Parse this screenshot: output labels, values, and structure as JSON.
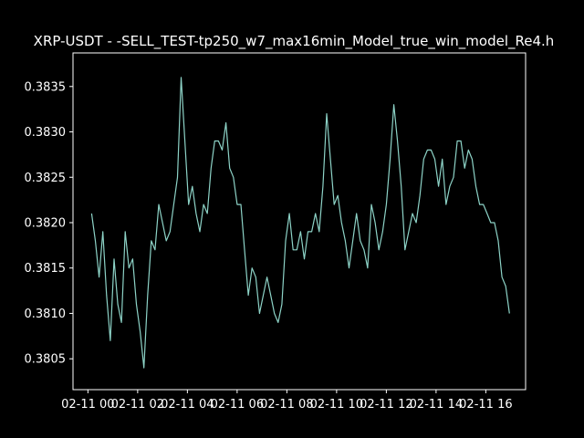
{
  "chart_data": {
    "type": "line",
    "title": "XRP-USDT - -SELL_TEST-tp250_w7_max16min_Model_true_win_model_Re4.h",
    "xlabel": "",
    "ylabel": "",
    "x_tick_labels": [
      "02-11 00",
      "02-11 02",
      "02-11 04",
      "02-11 06",
      "02-11 08",
      "02-11 10",
      "02-11 12",
      "02-11 14",
      "02-11 16"
    ],
    "x_ticks_hours": [
      0,
      2,
      4,
      6,
      8,
      10,
      12,
      14,
      16
    ],
    "xlim_hours": [
      -0.6,
      17.6
    ],
    "y_tick_labels": [
      "0.3805",
      "0.3810",
      "0.3815",
      "0.3820",
      "0.3825",
      "0.3830",
      "0.3835"
    ],
    "y_ticks": [
      0.3805,
      0.381,
      0.3815,
      0.382,
      0.3825,
      0.383,
      0.3835
    ],
    "ylim": [
      0.38016,
      0.38387
    ],
    "grid": false,
    "series": [
      {
        "color": "#8dd3c7",
        "x_hours": [
          0.15,
          0.3,
          0.45,
          0.6,
          0.75,
          0.9,
          1.05,
          1.2,
          1.35,
          1.5,
          1.65,
          1.8,
          1.95,
          2.1,
          2.25,
          2.4,
          2.55,
          2.7,
          2.85,
          3.0,
          3.15,
          3.3,
          3.45,
          3.6,
          3.75,
          3.9,
          4.05,
          4.2,
          4.35,
          4.5,
          4.65,
          4.8,
          4.95,
          5.1,
          5.25,
          5.4,
          5.55,
          5.7,
          5.85,
          6.0,
          6.15,
          6.3,
          6.45,
          6.6,
          6.75,
          6.9,
          7.05,
          7.2,
          7.35,
          7.5,
          7.65,
          7.8,
          7.95,
          8.1,
          8.25,
          8.4,
          8.55,
          8.7,
          8.85,
          9.0,
          9.15,
          9.3,
          9.45,
          9.6,
          9.75,
          9.9,
          10.05,
          10.2,
          10.35,
          10.5,
          10.65,
          10.8,
          10.95,
          11.1,
          11.25,
          11.4,
          11.55,
          11.7,
          11.85,
          12.0,
          12.15,
          12.3,
          12.45,
          12.6,
          12.75,
          12.9,
          13.05,
          13.2,
          13.35,
          13.5,
          13.65,
          13.8,
          13.95,
          14.1,
          14.25,
          14.4,
          14.55,
          14.7,
          14.85,
          15.0,
          15.15,
          15.3,
          15.45,
          15.6,
          15.75,
          15.9,
          16.05,
          16.2,
          16.35,
          16.5,
          16.65,
          16.8,
          16.95
        ],
        "values": [
          0.3821,
          0.3818,
          0.3814,
          0.3819,
          0.3812,
          0.3807,
          0.3816,
          0.3811,
          0.3809,
          0.3819,
          0.3815,
          0.3816,
          0.3811,
          0.3808,
          0.3804,
          0.3812,
          0.3818,
          0.3817,
          0.3822,
          0.382,
          0.3818,
          0.3819,
          0.3822,
          0.3825,
          0.3836,
          0.3829,
          0.3822,
          0.3824,
          0.3821,
          0.3819,
          0.3822,
          0.3821,
          0.3826,
          0.3829,
          0.3829,
          0.3828,
          0.3831,
          0.3826,
          0.3825,
          0.3822,
          0.3822,
          0.3817,
          0.3812,
          0.3815,
          0.3814,
          0.381,
          0.3812,
          0.3814,
          0.3812,
          0.381,
          0.3809,
          0.3811,
          0.3818,
          0.3821,
          0.3817,
          0.3817,
          0.3819,
          0.3816,
          0.3819,
          0.3819,
          0.3821,
          0.3819,
          0.3824,
          0.3832,
          0.3827,
          0.3822,
          0.3823,
          0.382,
          0.3818,
          0.3815,
          0.3818,
          0.3821,
          0.3818,
          0.3817,
          0.3815,
          0.3822,
          0.382,
          0.3817,
          0.3819,
          0.3822,
          0.3827,
          0.3833,
          0.3829,
          0.3824,
          0.3817,
          0.3819,
          0.3821,
          0.382,
          0.3823,
          0.3827,
          0.3828,
          0.3828,
          0.3827,
          0.3824,
          0.3827,
          0.3822,
          0.3824,
          0.3825,
          0.3829,
          0.3829,
          0.3826,
          0.3828,
          0.3827,
          0.3824,
          0.3822,
          0.3822,
          0.3821,
          0.382,
          0.382,
          0.3818,
          0.3814,
          0.3813,
          0.381
        ]
      }
    ]
  }
}
